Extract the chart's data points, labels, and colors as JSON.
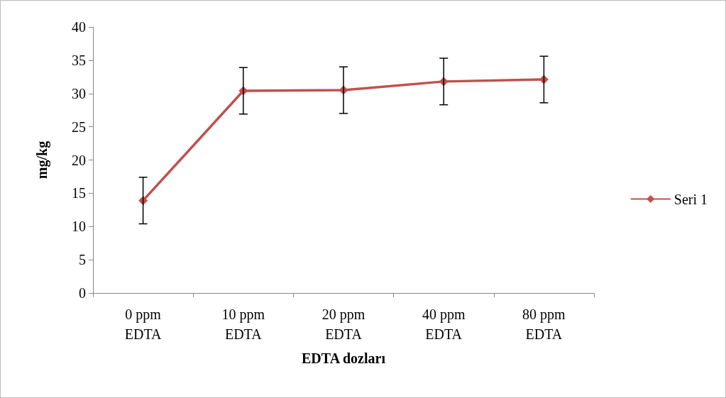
{
  "chart_data": {
    "type": "line",
    "xlabel": "EDTA dozları",
    "ylabel": "mg/kg",
    "categories": [
      "0 ppm\nEDTA",
      "10 ppm\nEDTA",
      "20 ppm\nEDTA",
      "40 ppm\nEDTA",
      "80 ppm\nEDTA"
    ],
    "series": [
      {
        "name": "Seri 1",
        "color": "#c0504d",
        "values": [
          13.9,
          30.4,
          30.5,
          31.8,
          32.1
        ],
        "errors": [
          3.5,
          3.5,
          3.5,
          3.5,
          3.5
        ]
      }
    ],
    "ylim": [
      0,
      40
    ],
    "yticks": [
      0,
      5,
      10,
      15,
      20,
      25,
      30,
      35,
      40
    ],
    "grid": false,
    "legend": "right",
    "marker": "diamond",
    "line_style": "solid"
  }
}
